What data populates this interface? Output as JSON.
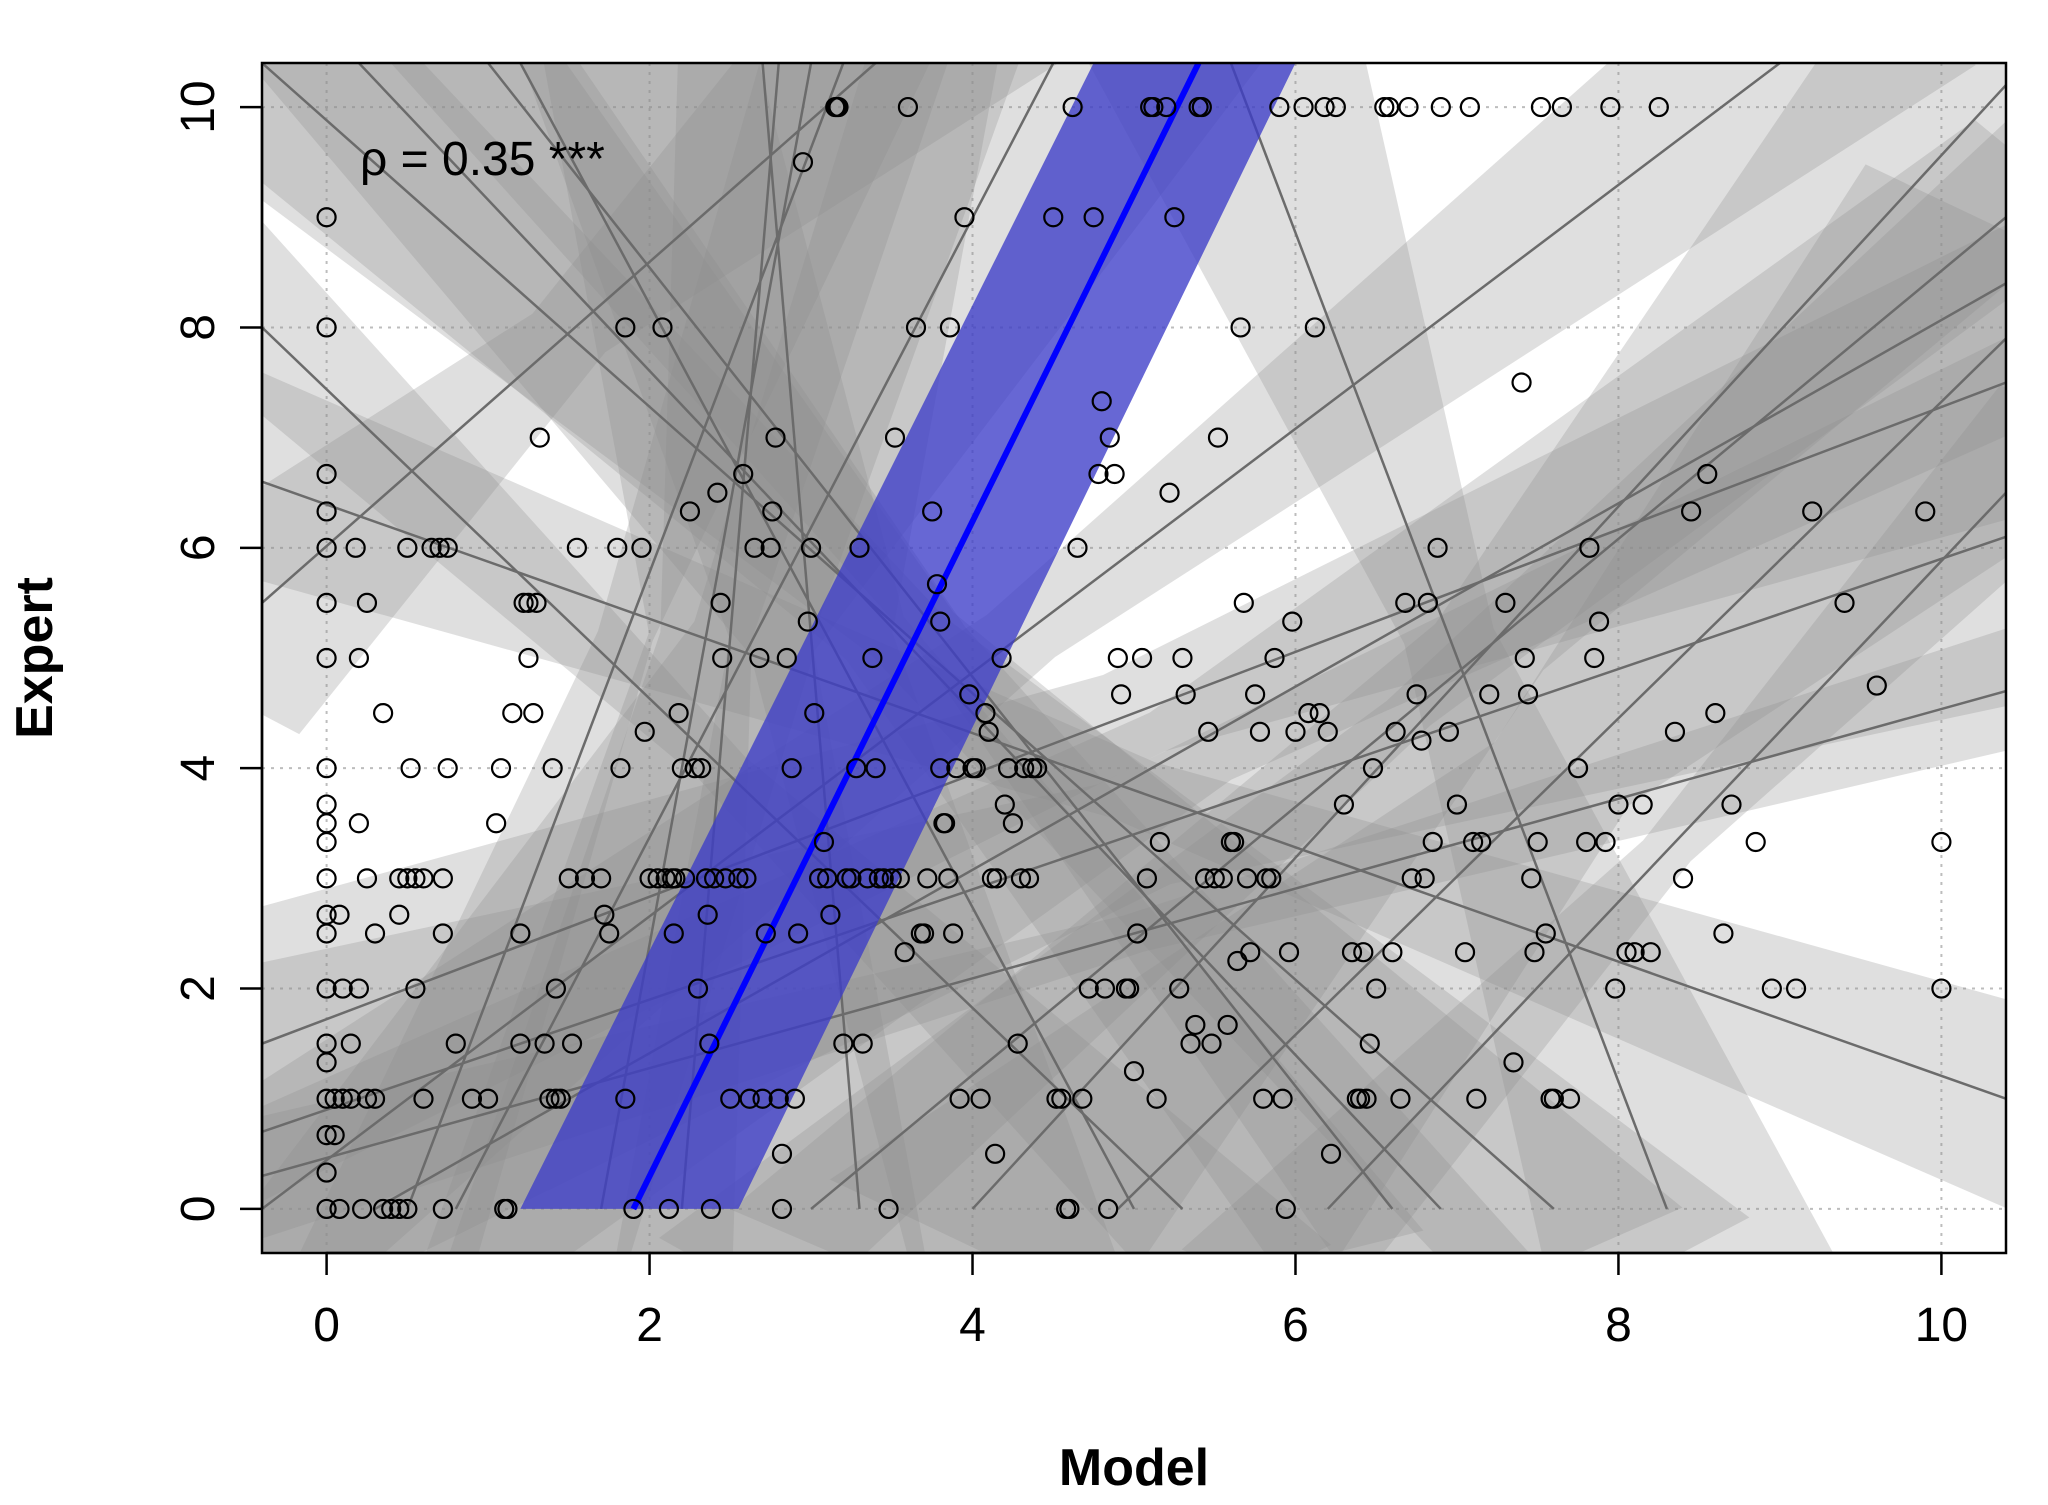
{
  "chart_data": {
    "type": "scatter",
    "title": "",
    "xlabel": "Model",
    "ylabel": "Expert",
    "xlim": [
      -0.4,
      10.4
    ],
    "ylim": [
      -0.4,
      10.4
    ],
    "xticks": [
      0,
      2,
      4,
      6,
      8,
      10
    ],
    "yticks": [
      0,
      2,
      4,
      6,
      8,
      10
    ],
    "grid": true,
    "annotation": "ρ = 0.35 ***",
    "colors": {
      "main_fit": "#0000ff",
      "main_band": "#3c3cc8",
      "group_line": "#6b6b6b",
      "group_band": "#8c8c8c",
      "points": "#000000"
    },
    "main_fit": {
      "x": [
        1.9,
        5.4
      ],
      "y": [
        0,
        10.4
      ],
      "band_lower_x": [
        1.2,
        4.75
      ],
      "band_upper_x": [
        2.55,
        6.0
      ]
    },
    "group_fits": [
      {
        "x": [
          -0.4,
          5.3
        ],
        "y": [
          8.0,
          0.0
        ]
      },
      {
        "x": [
          -0.4,
          10.4
        ],
        "y": [
          6.6,
          1.0
        ]
      },
      {
        "x": [
          -0.4,
          10.4
        ],
        "y": [
          1.5,
          7.5
        ]
      },
      {
        "x": [
          -0.4,
          10.4
        ],
        "y": [
          0.7,
          6.1
        ]
      },
      {
        "x": [
          -0.4,
          10.4
        ],
        "y": [
          0.3,
          4.7
        ]
      },
      {
        "x": [
          -0.4,
          7.6
        ],
        "y": [
          10.4,
          0.0
        ]
      },
      {
        "x": [
          0.2,
          6.9
        ],
        "y": [
          10.4,
          0.0
        ]
      },
      {
        "x": [
          1.2,
          5.0
        ],
        "y": [
          10.4,
          0.0
        ]
      },
      {
        "x": [
          0.5,
          3.2
        ],
        "y": [
          0.0,
          10.4
        ]
      },
      {
        "x": [
          1.7,
          3.0
        ],
        "y": [
          0.0,
          10.4
        ]
      },
      {
        "x": [
          4.0,
          10.4
        ],
        "y": [
          0.0,
          10.2
        ]
      },
      {
        "x": [
          4.9,
          10.4
        ],
        "y": [
          0.0,
          7.9
        ]
      },
      {
        "x": [
          3.0,
          10.4
        ],
        "y": [
          0.0,
          9.0
        ]
      },
      {
        "x": [
          -0.4,
          9.0
        ],
        "y": [
          0.0,
          10.4
        ]
      },
      {
        "x": [
          0.3,
          10.4
        ],
        "y": [
          0.0,
          8.4
        ]
      },
      {
        "x": [
          2.2,
          2.8
        ],
        "y": [
          0.0,
          10.4
        ]
      },
      {
        "x": [
          1.0,
          6.6
        ],
        "y": [
          10.4,
          0.0
        ]
      },
      {
        "x": [
          -0.4,
          3.4
        ],
        "y": [
          5.5,
          10.4
        ]
      },
      {
        "x": [
          0.8,
          4.5
        ],
        "y": [
          0.0,
          10.4
        ]
      },
      {
        "x": [
          2.7,
          3.3
        ],
        "y": [
          10.4,
          0.0
        ]
      },
      {
        "x": [
          6.2,
          10.4
        ],
        "y": [
          0.0,
          6.5
        ]
      },
      {
        "x": [
          5.6,
          8.3
        ],
        "y": [
          10.4,
          0.0
        ]
      }
    ],
    "points": [
      [
        0,
        9
      ],
      [
        0,
        8
      ],
      [
        0,
        6.67
      ],
      [
        0,
        6.33
      ],
      [
        0,
        6
      ],
      [
        0,
        5.5
      ],
      [
        0,
        5
      ],
      [
        0,
        4
      ],
      [
        0,
        3.67
      ],
      [
        0,
        3.5
      ],
      [
        0,
        3.33
      ],
      [
        0,
        3
      ],
      [
        0,
        2.67
      ],
      [
        0,
        2.5
      ],
      [
        0,
        2
      ],
      [
        0,
        1.5
      ],
      [
        0,
        1.33
      ],
      [
        0,
        1
      ],
      [
        0,
        0.67
      ],
      [
        0,
        0.33
      ],
      [
        0,
        0
      ],
      [
        0.05,
        1
      ],
      [
        0.05,
        0.67
      ],
      [
        0.08,
        2.67
      ],
      [
        0.08,
        0
      ],
      [
        0.1,
        2
      ],
      [
        0.1,
        1
      ],
      [
        0.15,
        1.5
      ],
      [
        0.15,
        1
      ],
      [
        0.18,
        6
      ],
      [
        0.2,
        3.5
      ],
      [
        0.2,
        5
      ],
      [
        0.2,
        2
      ],
      [
        0.22,
        0
      ],
      [
        0.25,
        5.5
      ],
      [
        0.25,
        3
      ],
      [
        0.25,
        1
      ],
      [
        0.3,
        2.5
      ],
      [
        0.3,
        1
      ],
      [
        0.35,
        4.5
      ],
      [
        0.35,
        0
      ],
      [
        0.4,
        0
      ],
      [
        0.45,
        3
      ],
      [
        0.45,
        2.67
      ],
      [
        0.45,
        0
      ],
      [
        0.5,
        6
      ],
      [
        0.5,
        3
      ],
      [
        0.5,
        0
      ],
      [
        0.52,
        4
      ],
      [
        0.55,
        3
      ],
      [
        0.55,
        2
      ],
      [
        0.6,
        3
      ],
      [
        0.6,
        1
      ],
      [
        0.65,
        6
      ],
      [
        0.7,
        6
      ],
      [
        0.72,
        3
      ],
      [
        0.72,
        2.5
      ],
      [
        0.72,
        0
      ],
      [
        0.75,
        6
      ],
      [
        0.75,
        4
      ],
      [
        0.8,
        1.5
      ],
      [
        0.9,
        1
      ],
      [
        1.0,
        1
      ],
      [
        1.05,
        3.5
      ],
      [
        1.08,
        4
      ],
      [
        1.1,
        0
      ],
      [
        1.12,
        0
      ],
      [
        1.15,
        4.5
      ],
      [
        1.2,
        2.5
      ],
      [
        1.2,
        1.5
      ],
      [
        1.22,
        5.5
      ],
      [
        1.25,
        5
      ],
      [
        1.25,
        5.5
      ],
      [
        1.28,
        4.5
      ],
      [
        1.3,
        5.5
      ],
      [
        1.32,
        7
      ],
      [
        1.35,
        1.5
      ],
      [
        1.38,
        1
      ],
      [
        1.4,
        4
      ],
      [
        1.42,
        2
      ],
      [
        1.42,
        1
      ],
      [
        1.45,
        1
      ],
      [
        1.5,
        3
      ],
      [
        1.52,
        1.5
      ],
      [
        1.55,
        6
      ],
      [
        1.6,
        3
      ],
      [
        1.7,
        3
      ],
      [
        1.72,
        2.67
      ],
      [
        1.75,
        2.5
      ],
      [
        1.8,
        6
      ],
      [
        1.82,
        4
      ],
      [
        1.85,
        8
      ],
      [
        1.85,
        1
      ],
      [
        1.9,
        0
      ],
      [
        1.95,
        6
      ],
      [
        1.97,
        4.33
      ],
      [
        2.0,
        3
      ],
      [
        2.05,
        3
      ],
      [
        2.08,
        8
      ],
      [
        2.1,
        3
      ],
      [
        2.12,
        0
      ],
      [
        2.14,
        3
      ],
      [
        2.15,
        2.5
      ],
      [
        2.16,
        3
      ],
      [
        2.18,
        4.5
      ],
      [
        2.2,
        4
      ],
      [
        2.22,
        3
      ],
      [
        2.25,
        6.33
      ],
      [
        2.28,
        4
      ],
      [
        2.3,
        2
      ],
      [
        2.32,
        4
      ],
      [
        2.35,
        3
      ],
      [
        2.36,
        2.67
      ],
      [
        2.37,
        1.5
      ],
      [
        2.38,
        0
      ],
      [
        2.4,
        3
      ],
      [
        2.42,
        6.5
      ],
      [
        2.44,
        5.5
      ],
      [
        2.45,
        5
      ],
      [
        2.47,
        3
      ],
      [
        2.5,
        1
      ],
      [
        2.55,
        3
      ],
      [
        2.58,
        6.67
      ],
      [
        2.6,
        3
      ],
      [
        2.62,
        1
      ],
      [
        2.65,
        6
      ],
      [
        2.68,
        5
      ],
      [
        2.7,
        1
      ],
      [
        2.72,
        2.5
      ],
      [
        2.75,
        6
      ],
      [
        2.76,
        6.33
      ],
      [
        2.78,
        7
      ],
      [
        2.8,
        1
      ],
      [
        2.82,
        0
      ],
      [
        2.82,
        0.5
      ],
      [
        2.85,
        5
      ],
      [
        2.88,
        4
      ],
      [
        2.9,
        1
      ],
      [
        2.92,
        2.5
      ],
      [
        2.95,
        9.5
      ],
      [
        2.98,
        5.33
      ],
      [
        3.0,
        6
      ],
      [
        3.02,
        4.5
      ],
      [
        3.05,
        3
      ],
      [
        3.08,
        3.33
      ],
      [
        3.1,
        3
      ],
      [
        3.12,
        2.67
      ],
      [
        3.15,
        10
      ],
      [
        3.16,
        10
      ],
      [
        3.17,
        10
      ],
      [
        3.2,
        1.5
      ],
      [
        3.22,
        3
      ],
      [
        3.25,
        3
      ],
      [
        3.28,
        4
      ],
      [
        3.3,
        6
      ],
      [
        3.32,
        1.5
      ],
      [
        3.35,
        3
      ],
      [
        3.38,
        5
      ],
      [
        3.4,
        4
      ],
      [
        3.42,
        3
      ],
      [
        3.45,
        3
      ],
      [
        3.48,
        0
      ],
      [
        3.5,
        3
      ],
      [
        3.52,
        7
      ],
      [
        3.55,
        3
      ],
      [
        3.58,
        2.33
      ],
      [
        3.6,
        10
      ],
      [
        3.65,
        8
      ],
      [
        3.68,
        2.5
      ],
      [
        3.7,
        2.5
      ],
      [
        3.72,
        3
      ],
      [
        3.75,
        6.33
      ],
      [
        3.78,
        5.67
      ],
      [
        3.8,
        5.33
      ],
      [
        3.8,
        4
      ],
      [
        3.82,
        3.5
      ],
      [
        3.83,
        3.5
      ],
      [
        3.85,
        3
      ],
      [
        3.86,
        8
      ],
      [
        3.88,
        2.5
      ],
      [
        3.9,
        4
      ],
      [
        3.92,
        1
      ],
      [
        3.95,
        9
      ],
      [
        3.98,
        4.67
      ],
      [
        4.0,
        4
      ],
      [
        4.02,
        4
      ],
      [
        4.05,
        1
      ],
      [
        4.08,
        4.5
      ],
      [
        4.1,
        4.33
      ],
      [
        4.12,
        3
      ],
      [
        4.14,
        0.5
      ],
      [
        4.15,
        3
      ],
      [
        4.18,
        5
      ],
      [
        4.2,
        3.67
      ],
      [
        4.22,
        4
      ],
      [
        4.25,
        3.5
      ],
      [
        4.28,
        1.5
      ],
      [
        4.3,
        3
      ],
      [
        4.32,
        4
      ],
      [
        4.35,
        3
      ],
      [
        4.37,
        4
      ],
      [
        4.4,
        4
      ],
      [
        4.5,
        9
      ],
      [
        4.52,
        1
      ],
      [
        4.55,
        1
      ],
      [
        4.58,
        0
      ],
      [
        4.6,
        0
      ],
      [
        4.62,
        10
      ],
      [
        4.65,
        6
      ],
      [
        4.68,
        1
      ],
      [
        4.72,
        2
      ],
      [
        4.75,
        9
      ],
      [
        4.78,
        6.67
      ],
      [
        4.8,
        7.33
      ],
      [
        4.82,
        2
      ],
      [
        4.84,
        0
      ],
      [
        4.85,
        7
      ],
      [
        4.88,
        6.67
      ],
      [
        4.9,
        5
      ],
      [
        4.92,
        4.67
      ],
      [
        4.95,
        2
      ],
      [
        4.97,
        2
      ],
      [
        5.0,
        1.25
      ],
      [
        5.02,
        2.5
      ],
      [
        5.05,
        5
      ],
      [
        5.08,
        3
      ],
      [
        5.1,
        10
      ],
      [
        5.12,
        10
      ],
      [
        5.14,
        1
      ],
      [
        5.16,
        3.33
      ],
      [
        5.2,
        10
      ],
      [
        5.22,
        6.5
      ],
      [
        5.25,
        9
      ],
      [
        5.28,
        2
      ],
      [
        5.3,
        5
      ],
      [
        5.32,
        4.67
      ],
      [
        5.35,
        1.5
      ],
      [
        5.38,
        1.67
      ],
      [
        5.4,
        10
      ],
      [
        5.42,
        10
      ],
      [
        5.44,
        3
      ],
      [
        5.46,
        4.33
      ],
      [
        5.48,
        1.5
      ],
      [
        5.5,
        3
      ],
      [
        5.52,
        7
      ],
      [
        5.55,
        3
      ],
      [
        5.58,
        1.67
      ],
      [
        5.6,
        3.33
      ],
      [
        5.62,
        3.33
      ],
      [
        5.64,
        2.25
      ],
      [
        5.66,
        8
      ],
      [
        5.68,
        5.5
      ],
      [
        5.7,
        3
      ],
      [
        5.72,
        2.33
      ],
      [
        5.75,
        4.67
      ],
      [
        5.78,
        4.33
      ],
      [
        5.8,
        1
      ],
      [
        5.82,
        3
      ],
      [
        5.85,
        3
      ],
      [
        5.87,
        5
      ],
      [
        5.9,
        10
      ],
      [
        5.92,
        1
      ],
      [
        5.94,
        0
      ],
      [
        5.96,
        2.33
      ],
      [
        5.98,
        5.33
      ],
      [
        6.0,
        4.33
      ],
      [
        6.05,
        10
      ],
      [
        6.08,
        4.5
      ],
      [
        6.12,
        8
      ],
      [
        6.15,
        4.5
      ],
      [
        6.18,
        10
      ],
      [
        6.2,
        4.33
      ],
      [
        6.22,
        0.5
      ],
      [
        6.25,
        10
      ],
      [
        6.3,
        3.67
      ],
      [
        6.35,
        2.33
      ],
      [
        6.38,
        1
      ],
      [
        6.4,
        1
      ],
      [
        6.42,
        2.33
      ],
      [
        6.44,
        1
      ],
      [
        6.46,
        1.5
      ],
      [
        6.48,
        4
      ],
      [
        6.5,
        2
      ],
      [
        6.55,
        10
      ],
      [
        6.58,
        10
      ],
      [
        6.6,
        2.33
      ],
      [
        6.62,
        4.33
      ],
      [
        6.65,
        1
      ],
      [
        6.68,
        5.5
      ],
      [
        6.7,
        10
      ],
      [
        6.72,
        3
      ],
      [
        6.75,
        4.67
      ],
      [
        6.78,
        4.25
      ],
      [
        6.8,
        3
      ],
      [
        6.82,
        5.5
      ],
      [
        6.85,
        3.33
      ],
      [
        6.88,
        6
      ],
      [
        6.9,
        10
      ],
      [
        6.95,
        4.33
      ],
      [
        7.0,
        3.67
      ],
      [
        7.05,
        2.33
      ],
      [
        7.08,
        10
      ],
      [
        7.1,
        3.33
      ],
      [
        7.12,
        1
      ],
      [
        7.15,
        3.33
      ],
      [
        7.2,
        4.67
      ],
      [
        7.3,
        5.5
      ],
      [
        7.35,
        1.33
      ],
      [
        7.4,
        7.5
      ],
      [
        7.42,
        5
      ],
      [
        7.44,
        4.67
      ],
      [
        7.46,
        3
      ],
      [
        7.48,
        2.33
      ],
      [
        7.5,
        3.33
      ],
      [
        7.52,
        10
      ],
      [
        7.55,
        2.5
      ],
      [
        7.58,
        1
      ],
      [
        7.6,
        1
      ],
      [
        7.65,
        10
      ],
      [
        7.7,
        1
      ],
      [
        7.75,
        4
      ],
      [
        7.8,
        3.33
      ],
      [
        7.82,
        6
      ],
      [
        7.85,
        5
      ],
      [
        7.88,
        5.33
      ],
      [
        7.92,
        3.33
      ],
      [
        7.95,
        10
      ],
      [
        7.98,
        2
      ],
      [
        8.0,
        3.67
      ],
      [
        8.05,
        2.33
      ],
      [
        8.1,
        2.33
      ],
      [
        8.15,
        3.67
      ],
      [
        8.2,
        2.33
      ],
      [
        8.25,
        10
      ],
      [
        8.35,
        4.33
      ],
      [
        8.4,
        3
      ],
      [
        8.45,
        6.33
      ],
      [
        8.55,
        6.67
      ],
      [
        8.6,
        4.5
      ],
      [
        8.65,
        2.5
      ],
      [
        8.7,
        3.67
      ],
      [
        8.85,
        3.33
      ],
      [
        8.95,
        2
      ],
      [
        9.1,
        2
      ],
      [
        9.2,
        6.33
      ],
      [
        9.4,
        5.5
      ],
      [
        9.6,
        4.75
      ],
      [
        9.9,
        6.33
      ],
      [
        10,
        3.33
      ],
      [
        10,
        2
      ]
    ]
  }
}
